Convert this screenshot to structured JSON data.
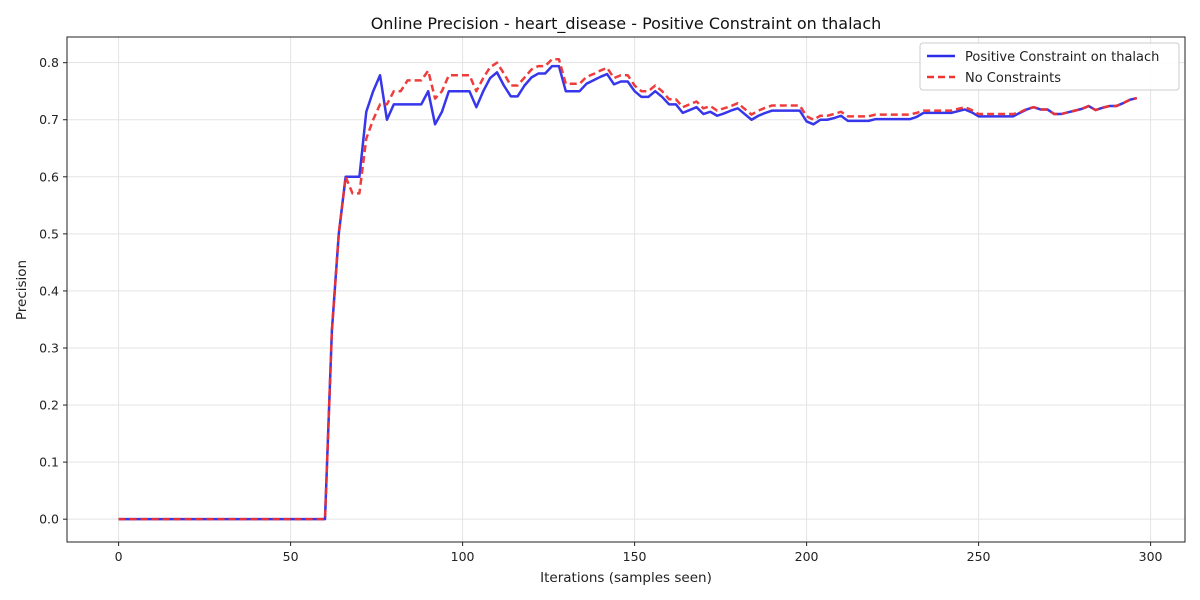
{
  "chart_data": {
    "type": "line",
    "title": "Online Precision - heart_disease - Positive Constraint on thalach",
    "xlabel": "Iterations (samples seen)",
    "ylabel": "Precision",
    "xlim": [
      -15,
      310
    ],
    "ylim": [
      -0.04,
      0.845
    ],
    "xticks": [
      0,
      50,
      100,
      150,
      200,
      250,
      300
    ],
    "yticks": [
      0.0,
      0.1,
      0.2,
      0.3,
      0.4,
      0.5,
      0.6,
      0.7,
      0.8
    ],
    "grid": true,
    "legend_position": "top-right",
    "series": [
      {
        "name": "Positive Constraint on thalach",
        "color": "#2b2bea",
        "style": "solid",
        "points": [
          [
            0,
            0
          ],
          [
            20,
            0
          ],
          [
            40,
            0
          ],
          [
            60,
            0
          ],
          [
            62,
            0.33
          ],
          [
            64,
            0.5
          ],
          [
            66,
            0.6
          ],
          [
            68,
            0.6
          ],
          [
            70,
            0.6
          ],
          [
            72,
            0.714
          ],
          [
            74,
            0.75
          ],
          [
            76,
            0.778
          ],
          [
            78,
            0.7
          ],
          [
            80,
            0.727
          ],
          [
            82,
            0.727
          ],
          [
            84,
            0.727
          ],
          [
            86,
            0.727
          ],
          [
            88,
            0.727
          ],
          [
            90,
            0.75
          ],
          [
            92,
            0.692
          ],
          [
            94,
            0.714
          ],
          [
            96,
            0.75
          ],
          [
            98,
            0.75
          ],
          [
            100,
            0.75
          ],
          [
            102,
            0.75
          ],
          [
            104,
            0.722
          ],
          [
            106,
            0.75
          ],
          [
            108,
            0.773
          ],
          [
            110,
            0.783
          ],
          [
            112,
            0.76
          ],
          [
            114,
            0.741
          ],
          [
            116,
            0.741
          ],
          [
            118,
            0.76
          ],
          [
            120,
            0.774
          ],
          [
            122,
            0.781
          ],
          [
            124,
            0.781
          ],
          [
            126,
            0.794
          ],
          [
            128,
            0.794
          ],
          [
            130,
            0.75
          ],
          [
            132,
            0.75
          ],
          [
            134,
            0.75
          ],
          [
            136,
            0.763
          ],
          [
            138,
            0.769
          ],
          [
            140,
            0.775
          ],
          [
            142,
            0.78
          ],
          [
            144,
            0.762
          ],
          [
            146,
            0.767
          ],
          [
            148,
            0.767
          ],
          [
            150,
            0.75
          ],
          [
            152,
            0.74
          ],
          [
            154,
            0.74
          ],
          [
            156,
            0.75
          ],
          [
            158,
            0.74
          ],
          [
            160,
            0.727
          ],
          [
            162,
            0.727
          ],
          [
            164,
            0.712
          ],
          [
            166,
            0.717
          ],
          [
            168,
            0.722
          ],
          [
            170,
            0.71
          ],
          [
            172,
            0.714
          ],
          [
            174,
            0.707
          ],
          [
            176,
            0.711
          ],
          [
            178,
            0.716
          ],
          [
            180,
            0.72
          ],
          [
            182,
            0.71
          ],
          [
            184,
            0.7
          ],
          [
            186,
            0.707
          ],
          [
            188,
            0.712
          ],
          [
            190,
            0.716
          ],
          [
            192,
            0.716
          ],
          [
            194,
            0.716
          ],
          [
            196,
            0.716
          ],
          [
            198,
            0.716
          ],
          [
            200,
            0.697
          ],
          [
            202,
            0.692
          ],
          [
            204,
            0.7
          ],
          [
            206,
            0.7
          ],
          [
            208,
            0.703
          ],
          [
            210,
            0.707
          ],
          [
            212,
            0.698
          ],
          [
            214,
            0.698
          ],
          [
            216,
            0.698
          ],
          [
            218,
            0.698
          ],
          [
            220,
            0.701
          ],
          [
            222,
            0.701
          ],
          [
            224,
            0.701
          ],
          [
            226,
            0.701
          ],
          [
            228,
            0.701
          ],
          [
            230,
            0.701
          ],
          [
            232,
            0.705
          ],
          [
            234,
            0.712
          ],
          [
            236,
            0.712
          ],
          [
            238,
            0.712
          ],
          [
            240,
            0.712
          ],
          [
            242,
            0.712
          ],
          [
            244,
            0.715
          ],
          [
            246,
            0.718
          ],
          [
            248,
            0.713
          ],
          [
            250,
            0.706
          ],
          [
            252,
            0.706
          ],
          [
            254,
            0.706
          ],
          [
            256,
            0.706
          ],
          [
            258,
            0.706
          ],
          [
            260,
            0.706
          ],
          [
            262,
            0.712
          ],
          [
            264,
            0.718
          ],
          [
            266,
            0.722
          ],
          [
            268,
            0.718
          ],
          [
            270,
            0.718
          ],
          [
            272,
            0.71
          ],
          [
            274,
            0.71
          ],
          [
            276,
            0.713
          ],
          [
            278,
            0.716
          ],
          [
            280,
            0.719
          ],
          [
            282,
            0.724
          ],
          [
            284,
            0.717
          ],
          [
            286,
            0.721
          ],
          [
            288,
            0.724
          ],
          [
            290,
            0.724
          ],
          [
            292,
            0.729
          ],
          [
            294,
            0.735
          ],
          [
            296,
            0.738
          ]
        ]
      },
      {
        "name": "No Constraints",
        "color": "#ee3333",
        "style": "dashed",
        "points": [
          [
            0,
            0
          ],
          [
            20,
            0
          ],
          [
            40,
            0
          ],
          [
            60,
            0
          ],
          [
            62,
            0.33
          ],
          [
            64,
            0.5
          ],
          [
            66,
            0.6
          ],
          [
            68,
            0.571
          ],
          [
            70,
            0.571
          ],
          [
            72,
            0.667
          ],
          [
            74,
            0.7
          ],
          [
            76,
            0.727
          ],
          [
            78,
            0.727
          ],
          [
            80,
            0.75
          ],
          [
            82,
            0.75
          ],
          [
            84,
            0.769
          ],
          [
            86,
            0.769
          ],
          [
            88,
            0.769
          ],
          [
            90,
            0.786
          ],
          [
            92,
            0.737
          ],
          [
            94,
            0.75
          ],
          [
            96,
            0.778
          ],
          [
            98,
            0.778
          ],
          [
            100,
            0.778
          ],
          [
            102,
            0.778
          ],
          [
            104,
            0.75
          ],
          [
            106,
            0.773
          ],
          [
            108,
            0.792
          ],
          [
            110,
            0.8
          ],
          [
            112,
            0.781
          ],
          [
            114,
            0.76
          ],
          [
            116,
            0.76
          ],
          [
            118,
            0.774
          ],
          [
            120,
            0.788
          ],
          [
            122,
            0.794
          ],
          [
            124,
            0.794
          ],
          [
            126,
            0.806
          ],
          [
            128,
            0.806
          ],
          [
            130,
            0.763
          ],
          [
            132,
            0.763
          ],
          [
            134,
            0.763
          ],
          [
            136,
            0.775
          ],
          [
            138,
            0.78
          ],
          [
            140,
            0.786
          ],
          [
            142,
            0.791
          ],
          [
            144,
            0.773
          ],
          [
            146,
            0.778
          ],
          [
            148,
            0.778
          ],
          [
            150,
            0.76
          ],
          [
            152,
            0.75
          ],
          [
            154,
            0.75
          ],
          [
            156,
            0.76
          ],
          [
            158,
            0.75
          ],
          [
            160,
            0.736
          ],
          [
            162,
            0.736
          ],
          [
            164,
            0.722
          ],
          [
            166,
            0.727
          ],
          [
            168,
            0.732
          ],
          [
            170,
            0.72
          ],
          [
            172,
            0.724
          ],
          [
            174,
            0.716
          ],
          [
            176,
            0.72
          ],
          [
            178,
            0.724
          ],
          [
            180,
            0.729
          ],
          [
            182,
            0.719
          ],
          [
            184,
            0.709
          ],
          [
            186,
            0.716
          ],
          [
            188,
            0.721
          ],
          [
            190,
            0.725
          ],
          [
            192,
            0.725
          ],
          [
            194,
            0.725
          ],
          [
            196,
            0.725
          ],
          [
            198,
            0.725
          ],
          [
            200,
            0.706
          ],
          [
            202,
            0.7
          ],
          [
            204,
            0.707
          ],
          [
            206,
            0.707
          ],
          [
            208,
            0.71
          ],
          [
            210,
            0.714
          ],
          [
            212,
            0.706
          ],
          [
            214,
            0.706
          ],
          [
            216,
            0.706
          ],
          [
            218,
            0.706
          ],
          [
            220,
            0.709
          ],
          [
            222,
            0.709
          ],
          [
            224,
            0.709
          ],
          [
            226,
            0.709
          ],
          [
            228,
            0.709
          ],
          [
            230,
            0.709
          ],
          [
            232,
            0.712
          ],
          [
            234,
            0.716
          ],
          [
            236,
            0.716
          ],
          [
            238,
            0.716
          ],
          [
            240,
            0.716
          ],
          [
            242,
            0.716
          ],
          [
            244,
            0.719
          ],
          [
            246,
            0.722
          ],
          [
            248,
            0.717
          ],
          [
            250,
            0.71
          ],
          [
            252,
            0.71
          ],
          [
            254,
            0.71
          ],
          [
            256,
            0.71
          ],
          [
            258,
            0.71
          ],
          [
            260,
            0.71
          ],
          [
            262,
            0.713
          ],
          [
            264,
            0.719
          ],
          [
            266,
            0.722
          ],
          [
            268,
            0.718
          ],
          [
            270,
            0.718
          ],
          [
            272,
            0.71
          ],
          [
            274,
            0.71
          ],
          [
            276,
            0.713
          ],
          [
            278,
            0.716
          ],
          [
            280,
            0.719
          ],
          [
            282,
            0.724
          ],
          [
            284,
            0.717
          ],
          [
            286,
            0.721
          ],
          [
            288,
            0.724
          ],
          [
            290,
            0.724
          ],
          [
            292,
            0.729
          ],
          [
            294,
            0.735
          ],
          [
            296,
            0.738
          ]
        ]
      }
    ]
  }
}
